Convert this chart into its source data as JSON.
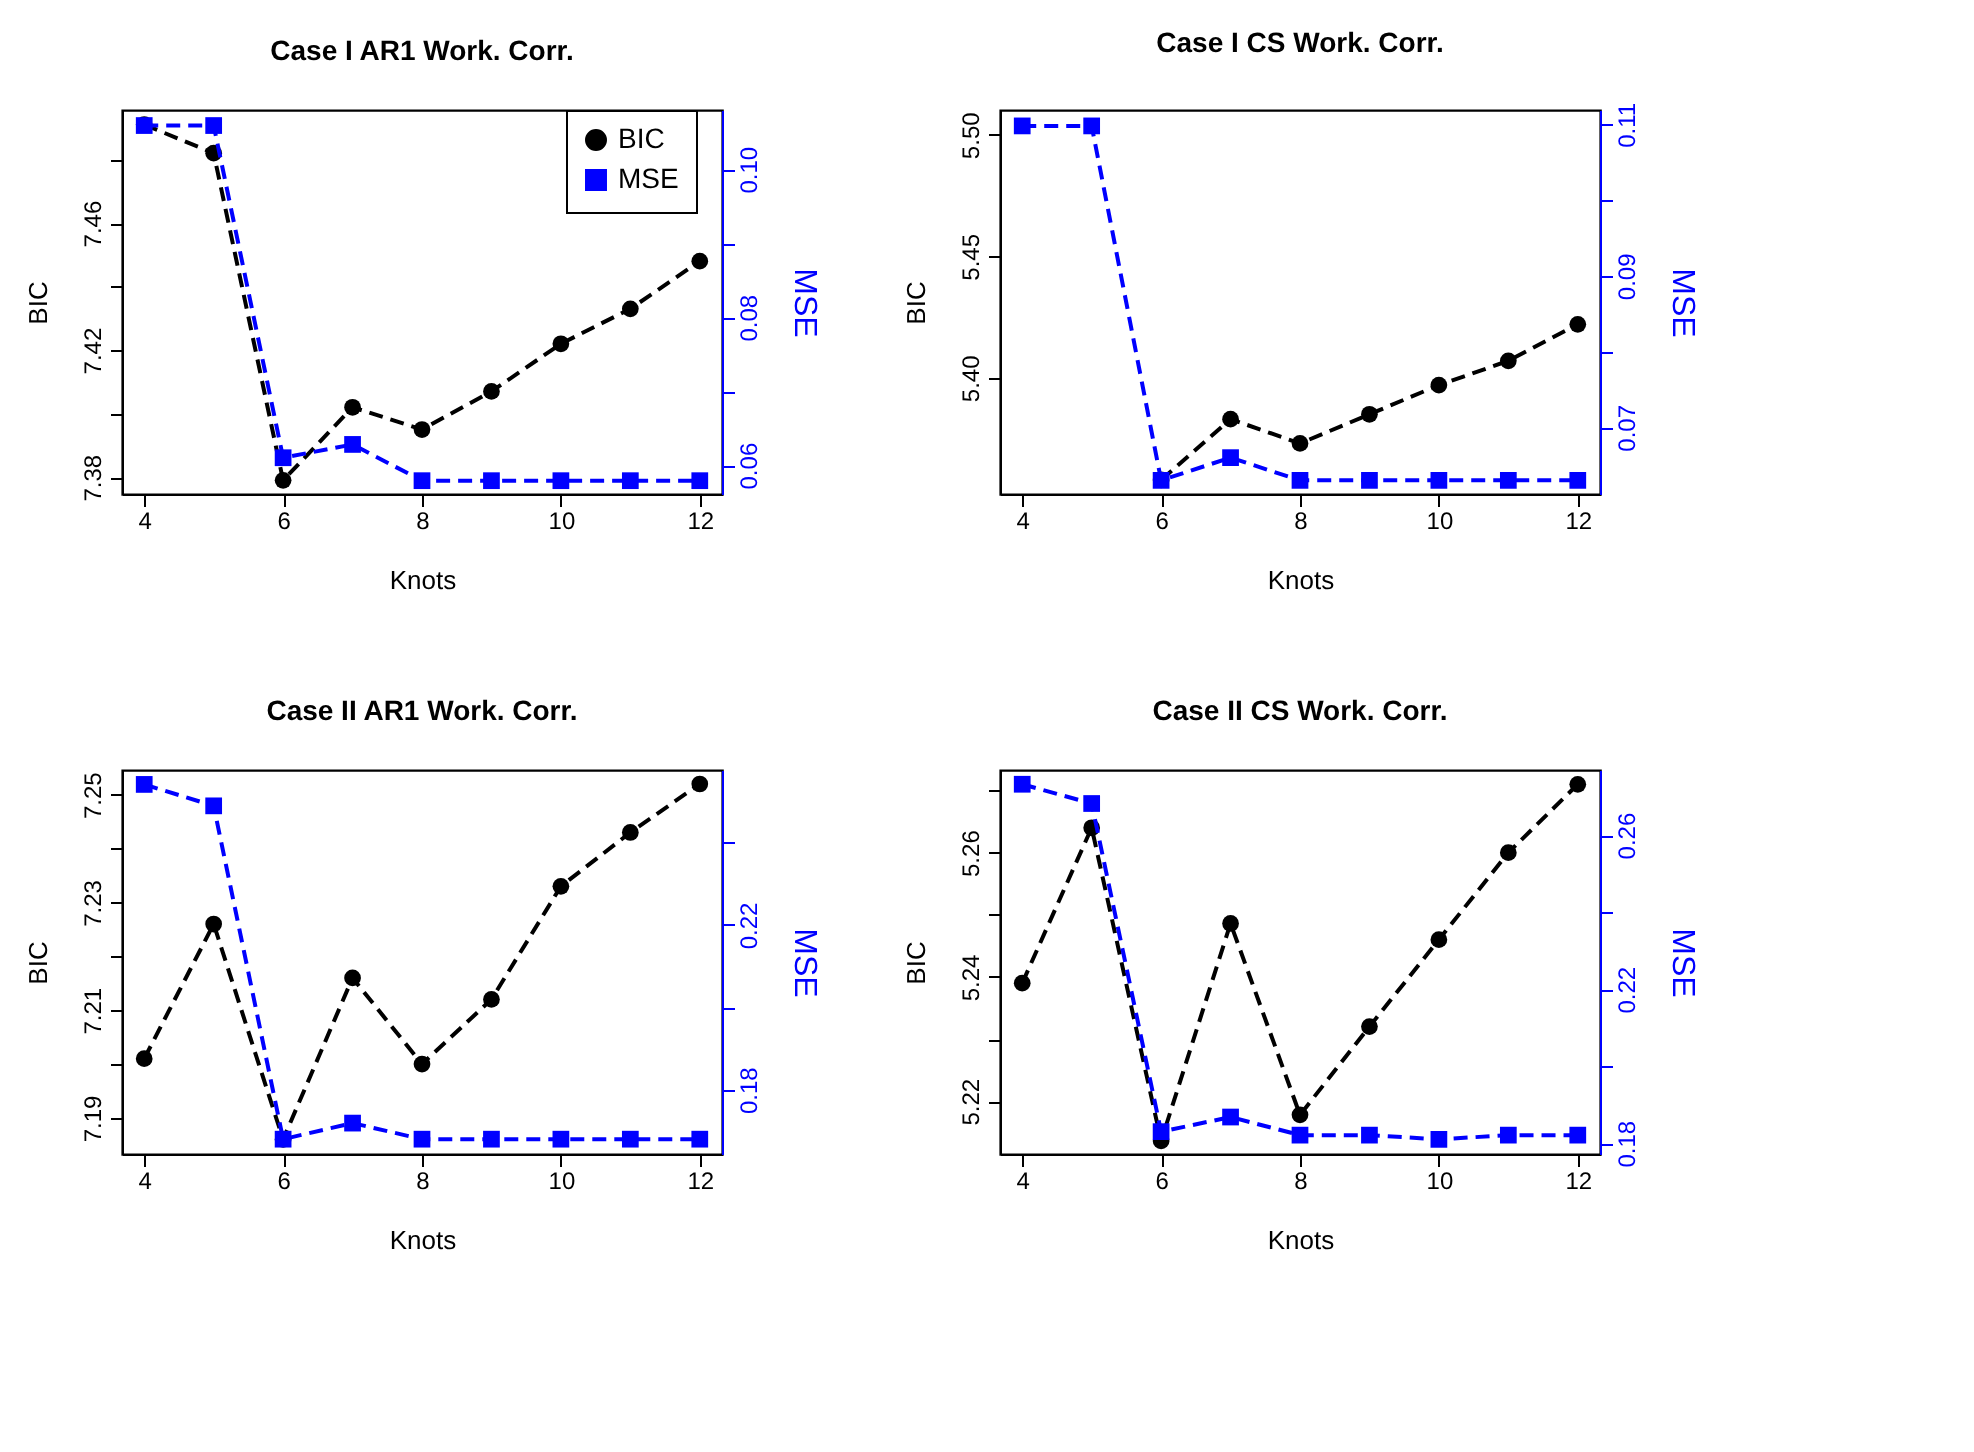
{
  "chart_data": [
    {
      "type": "line",
      "title": "Case I AR1 Work. Corr.",
      "xlabel": "Knots",
      "ylabel": "BIC",
      "y2label": "MSE",
      "x": [
        4,
        5,
        6,
        7,
        8,
        9,
        10,
        11,
        12
      ],
      "xlim": [
        3.68,
        12.32
      ],
      "xticks": [
        4,
        6,
        8,
        10,
        12
      ],
      "ylim": [
        7.3747,
        7.4956
      ],
      "yticks": [
        7.38,
        {
          "value": 7.4,
          "label": null
        },
        7.42,
        {
          "value": 7.44,
          "label": null
        },
        7.46,
        {
          "value": 7.48,
          "label": null
        }
      ],
      "y2lim": [
        0.0561,
        0.108
      ],
      "y2ticks": [
        0.06,
        {
          "value": 0.07,
          "label": null
        },
        0.08,
        {
          "value": 0.09,
          "label": null
        },
        {
          "value": 0.1,
          "label": "0.10"
        }
      ],
      "line_style": "dashed",
      "legend": "top right",
      "grid": false,
      "series": [
        {
          "name": "BIC",
          "color": "#000000",
          "marker": "circle",
          "values": [
            7.491,
            7.482,
            7.379,
            7.402,
            7.395,
            7.407,
            7.422,
            7.433,
            7.448
          ]
        },
        {
          "name": "MSE",
          "color": "#0000ff",
          "marker": "square",
          "axis": "y2",
          "values": [
            0.1059,
            0.1059,
            0.061,
            0.0628,
            0.0579,
            0.0579,
            0.0579,
            0.0579,
            0.0579
          ]
        }
      ]
    },
    {
      "type": "line",
      "title": "Case I CS Work. Corr.",
      "xlabel": "Knots",
      "ylabel": "BIC",
      "y2label": "MSE",
      "x": [
        4,
        5,
        6,
        7,
        8,
        9,
        10,
        11,
        12
      ],
      "xlim": [
        3.68,
        12.32
      ],
      "xticks": [
        4,
        6,
        8,
        10,
        12
      ],
      "ylim": [
        5.3522,
        5.5102
      ],
      "yticks": [
        {
          "value": 5.4,
          "label": "5.40"
        },
        5.45,
        {
          "value": 5.5,
          "label": "5.50"
        }
      ],
      "y2lim": [
        0.0612,
        0.1119
      ],
      "y2ticks": [
        0.07,
        {
          "value": 0.08,
          "label": null
        },
        0.09,
        {
          "value": 0.1,
          "label": null
        },
        0.11
      ],
      "line_style": "dashed",
      "grid": false,
      "series": [
        {
          "color": "#000000",
          "marker": "circle",
          "values": [
            null,
            null,
            5.358,
            5.383,
            5.373,
            5.385,
            5.397,
            5.407,
            5.422
          ]
        },
        {
          "color": "#0000ff",
          "marker": "square",
          "axis": "y2",
          "values": [
            0.1098,
            0.1098,
            0.063,
            0.066,
            0.063,
            0.063,
            0.063,
            0.063,
            0.063
          ]
        }
      ]
    },
    {
      "type": "line",
      "title": "Case II AR1 Work. Corr.",
      "xlabel": "Knots",
      "ylabel": "BIC",
      "y2label": "MSE",
      "x": [
        4,
        5,
        6,
        7,
        8,
        9,
        10,
        11,
        12
      ],
      "xlim": [
        3.68,
        12.32
      ],
      "xticks": [
        4,
        6,
        8,
        10,
        12
      ],
      "ylim": [
        7.1833,
        7.2546
      ],
      "yticks": [
        7.19,
        {
          "value": 7.2,
          "label": null
        },
        7.21,
        {
          "value": 7.22,
          "label": null
        },
        7.23,
        {
          "value": 7.24,
          "label": null
        },
        7.25
      ],
      "y2lim": [
        0.1644,
        0.2576
      ],
      "y2ticks": [
        0.18,
        {
          "value": 0.2,
          "label": null
        },
        0.22,
        {
          "value": 0.24,
          "label": null
        }
      ],
      "line_style": "dashed",
      "grid": false,
      "series": [
        {
          "color": "#000000",
          "marker": "circle",
          "values": [
            7.201,
            7.226,
            7.186,
            7.216,
            7.2,
            7.212,
            7.233,
            7.243,
            7.252
          ]
        },
        {
          "color": "#0000ff",
          "marker": "square",
          "axis": "y2",
          "values": [
            0.2541,
            0.2489,
            0.168,
            0.1719,
            0.168,
            0.168,
            0.168,
            0.168,
            0.168
          ]
        }
      ]
    },
    {
      "type": "line",
      "title": "Case II CS Work. Corr.",
      "xlabel": "Knots",
      "ylabel": "BIC",
      "y2label": "MSE",
      "x": [
        4,
        5,
        6,
        7,
        8,
        9,
        10,
        11,
        12
      ],
      "xlim": [
        3.68,
        12.32
      ],
      "xticks": [
        4,
        6,
        8,
        10,
        12
      ],
      "ylim": [
        5.2115,
        5.2733
      ],
      "yticks": [
        5.22,
        {
          "value": 5.23,
          "label": null
        },
        5.24,
        {
          "value": 5.25,
          "label": null
        },
        5.26,
        {
          "value": 5.27,
          "label": null
        }
      ],
      "y2lim": [
        0.1772,
        0.2769
      ],
      "y2ticks": [
        0.18,
        {
          "value": 0.2,
          "label": null
        },
        0.22,
        {
          "value": 0.24,
          "label": null
        },
        0.26
      ],
      "line_style": "dashed",
      "grid": false,
      "series": [
        {
          "color": "#000000",
          "marker": "circle",
          "values": [
            5.239,
            5.264,
            5.2136,
            5.2486,
            5.2178,
            5.232,
            5.246,
            5.26,
            5.271
          ]
        },
        {
          "color": "#0000ff",
          "marker": "square",
          "axis": "y2",
          "values": [
            0.2732,
            0.2682,
            0.183,
            0.1868,
            0.1821,
            0.1821,
            0.181,
            0.1821,
            0.1821
          ]
        }
      ]
    }
  ]
}
